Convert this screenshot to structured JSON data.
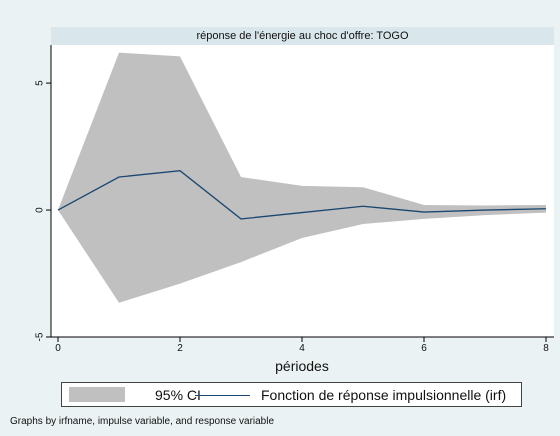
{
  "chart_data": {
    "type": "area",
    "title": "réponse de l'énergie au choc d'offre: TOGO",
    "xlabel": "périodes",
    "ylabel": "",
    "xlim": [
      0,
      8
    ],
    "ylim": [
      -5,
      6.5
    ],
    "x_ticks": [
      0,
      2,
      4,
      6,
      8
    ],
    "y_ticks": [
      -5,
      0,
      5
    ],
    "x": [
      0,
      1,
      2,
      3,
      4,
      5,
      6,
      7,
      8
    ],
    "series": [
      {
        "name": "95% CI",
        "kind": "band",
        "color": "#c0c0c0",
        "lower": [
          0,
          -3.65,
          -2.9,
          -2.05,
          -1.1,
          -0.55,
          -0.35,
          -0.2,
          -0.1
        ],
        "upper": [
          0,
          6.2,
          6.05,
          1.3,
          0.95,
          0.9,
          0.2,
          0.18,
          0.2
        ]
      },
      {
        "name": "Fonction de réponse impulsionnelle (irf)",
        "kind": "line",
        "color": "#1a476f",
        "values": [
          0,
          1.3,
          1.55,
          -0.35,
          -0.1,
          0.15,
          -0.08,
          0.0,
          0.05
        ]
      }
    ],
    "legend_position": "bottom",
    "grid": false
  },
  "note": "Graphs by irfname, impulse variable, and response variable"
}
